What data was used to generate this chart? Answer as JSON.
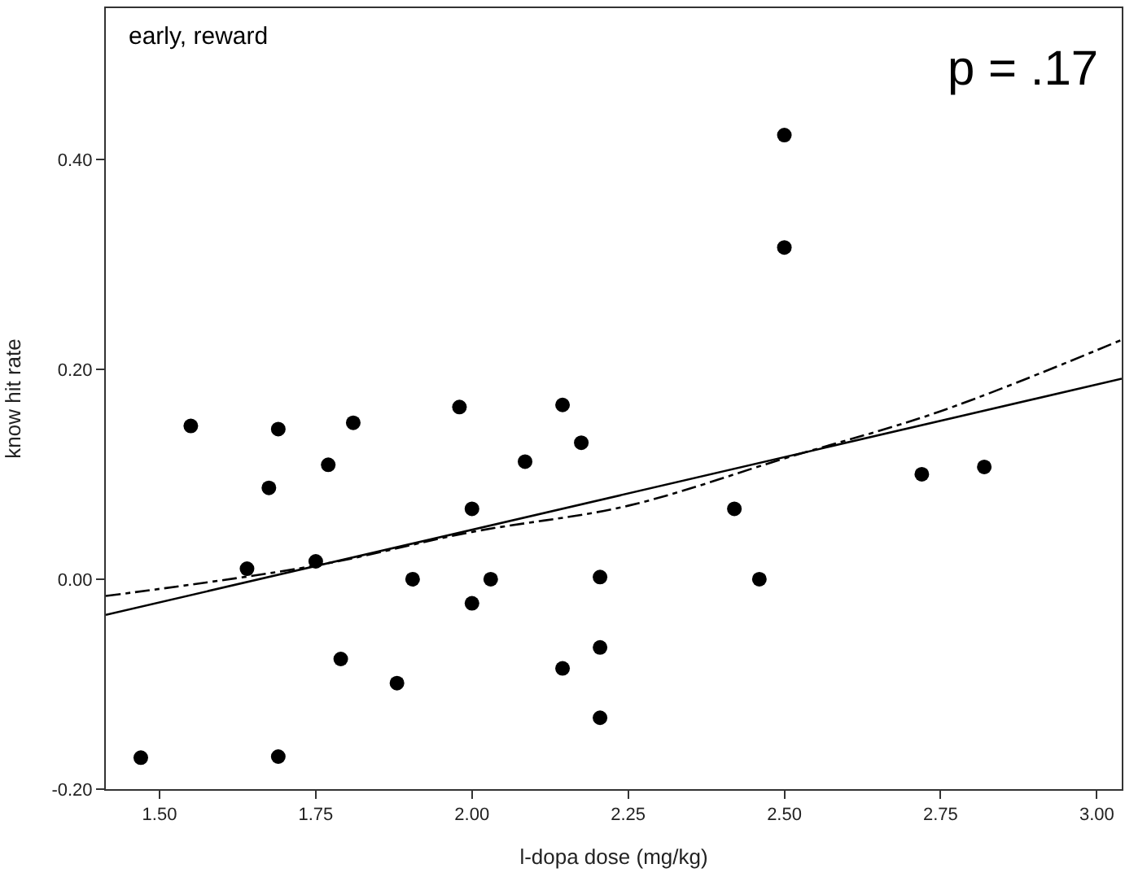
{
  "chart_data": {
    "type": "scatter",
    "xlabel": "l-dopa dose (mg/kg)",
    "ylabel": "know hit rate",
    "annotations": [
      "early, reward",
      "p = .17"
    ],
    "xlim": [
      1.414,
      3.04
    ],
    "ylim": [
      -0.2,
      0.544
    ],
    "xticks": [
      {
        "value": 1.5,
        "label": "1.50"
      },
      {
        "value": 1.75,
        "label": "1.75"
      },
      {
        "value": 2.0,
        "label": "2.00"
      },
      {
        "value": 2.25,
        "label": "2.25"
      },
      {
        "value": 2.5,
        "label": "2.50"
      },
      {
        "value": 2.75,
        "label": "2.75"
      },
      {
        "value": 3.0,
        "label": "3.00"
      }
    ],
    "yticks": [
      {
        "value": -0.2,
        "label": "-0.20"
      },
      {
        "value": 0.0,
        "label": "0.00"
      },
      {
        "value": 0.2,
        "label": "0.20"
      },
      {
        "value": 0.4,
        "label": "0.40"
      }
    ],
    "series": [
      {
        "marker": "circle",
        "color": "#000000",
        "x": [
          1.47,
          1.55,
          1.64,
          1.675,
          1.69,
          1.69,
          1.75,
          1.77,
          1.79,
          1.81,
          1.88,
          1.905,
          1.98,
          2.0,
          2.0,
          2.03,
          2.085,
          2.145,
          2.145,
          2.175,
          2.205,
          2.205,
          2.205,
          2.42,
          2.46,
          2.5,
          2.5,
          2.72,
          2.82
        ],
        "values": [
          -0.17,
          0.146,
          0.01,
          0.087,
          0.143,
          -0.169,
          0.017,
          0.109,
          -0.076,
          0.149,
          -0.099,
          0.0,
          0.164,
          0.067,
          -0.023,
          0.0,
          0.112,
          0.166,
          -0.085,
          0.13,
          0.002,
          -0.065,
          -0.132,
          0.067,
          0.0,
          0.423,
          0.316,
          0.1,
          0.107
        ]
      },
      {
        "type": "line",
        "color": "#000000",
        "line_style": "solid",
        "x": [
          1.414,
          3.04
        ],
        "values": [
          -0.034,
          0.191
        ]
      },
      {
        "type": "line",
        "color": "#000000",
        "line_style": "dashdot",
        "x": [
          1.414,
          1.75,
          2.0,
          2.25,
          2.5,
          2.75,
          3.04
        ],
        "values": [
          -0.016,
          0.013,
          0.045,
          0.07,
          0.115,
          0.16,
          0.228
        ]
      }
    ]
  }
}
